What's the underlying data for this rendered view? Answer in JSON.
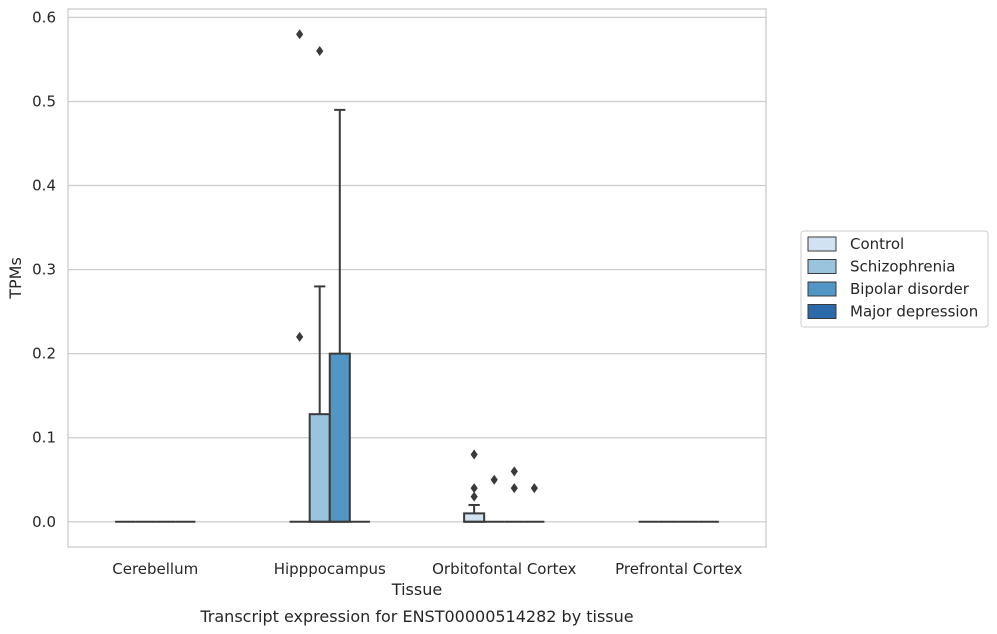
{
  "chart_data": {
    "type": "box",
    "title": "Transcript expression for ENST00000514282 by tissue",
    "xlabel": "Tissue",
    "ylabel": "TPMs",
    "ylim": [
      -0.03,
      0.61
    ],
    "yticks": [
      0.0,
      0.1,
      0.2,
      0.3,
      0.4,
      0.5,
      0.6
    ],
    "ytick_labels": [
      "0.0",
      "0.1",
      "0.2",
      "0.3",
      "0.4",
      "0.5",
      "0.6"
    ],
    "grid": true,
    "legend_position": "right",
    "categories": [
      "Cerebellum",
      "Hipppocampus",
      "Orbitofontal Cortex",
      "Prefrontal Cortex"
    ],
    "series": [
      {
        "name": "Control",
        "color": "#d1e2f2",
        "boxes": [
          {
            "q1": 0,
            "median": 0,
            "q3": 0,
            "whisker_low": 0,
            "whisker_high": 0,
            "outliers": []
          },
          {
            "q1": 0,
            "median": 0,
            "q3": 0,
            "whisker_low": 0,
            "whisker_high": 0,
            "outliers": [
              0.58,
              0.22
            ]
          },
          {
            "q1": 0,
            "median": 0,
            "q3": 0.01,
            "whisker_low": 0,
            "whisker_high": 0.02,
            "outliers": [
              0.03,
              0.04,
              0.08
            ]
          },
          {
            "q1": 0,
            "median": 0,
            "q3": 0,
            "whisker_low": 0,
            "whisker_high": 0,
            "outliers": []
          }
        ]
      },
      {
        "name": "Schizophrenia",
        "color": "#9ac4de",
        "boxes": [
          {
            "q1": 0,
            "median": 0,
            "q3": 0,
            "whisker_low": 0,
            "whisker_high": 0,
            "outliers": []
          },
          {
            "q1": 0,
            "median": 0,
            "q3": 0.128,
            "whisker_low": 0,
            "whisker_high": 0.28,
            "outliers": [
              0.56
            ]
          },
          {
            "q1": 0,
            "median": 0,
            "q3": 0,
            "whisker_low": 0,
            "whisker_high": 0,
            "outliers": [
              0.05
            ]
          },
          {
            "q1": 0,
            "median": 0,
            "q3": 0,
            "whisker_low": 0,
            "whisker_high": 0,
            "outliers": []
          }
        ]
      },
      {
        "name": "Bipolar disorder",
        "color": "#5296c6",
        "boxes": [
          {
            "q1": 0,
            "median": 0,
            "q3": 0,
            "whisker_low": 0,
            "whisker_high": 0,
            "outliers": []
          },
          {
            "q1": 0,
            "median": 0,
            "q3": 0.2,
            "whisker_low": 0,
            "whisker_high": 0.49,
            "outliers": []
          },
          {
            "q1": 0,
            "median": 0,
            "q3": 0,
            "whisker_low": 0,
            "whisker_high": 0,
            "outliers": [
              0.04,
              0.06
            ]
          },
          {
            "q1": 0,
            "median": 0,
            "q3": 0,
            "whisker_low": 0,
            "whisker_high": 0,
            "outliers": []
          }
        ]
      },
      {
        "name": "Major depression",
        "color": "#2b6aa9",
        "boxes": [
          {
            "q1": 0,
            "median": 0,
            "q3": 0,
            "whisker_low": 0,
            "whisker_high": 0,
            "outliers": []
          },
          {
            "q1": 0,
            "median": 0,
            "q3": 0,
            "whisker_low": 0,
            "whisker_high": 0,
            "outliers": []
          },
          {
            "q1": 0,
            "median": 0,
            "q3": 0,
            "whisker_low": 0,
            "whisker_high": 0,
            "outliers": [
              0.04
            ]
          },
          {
            "q1": 0,
            "median": 0,
            "q3": 0,
            "whisker_low": 0,
            "whisker_high": 0,
            "outliers": []
          }
        ]
      }
    ]
  }
}
